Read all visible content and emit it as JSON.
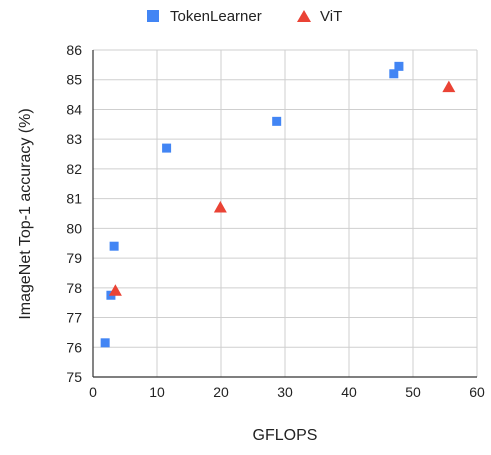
{
  "chart_data": {
    "type": "scatter",
    "title": "",
    "xlabel": "GFLOPS",
    "ylabel": "ImageNet Top-1 accuracy (%)",
    "xlim": [
      0,
      60
    ],
    "ylim": [
      75,
      86
    ],
    "x_ticks": [
      "0",
      "10",
      "20",
      "30",
      "40",
      "50",
      "60"
    ],
    "y_ticks": [
      "75",
      "76",
      "77",
      "78",
      "79",
      "80",
      "81",
      "82",
      "83",
      "84",
      "85",
      "86"
    ],
    "grid": true,
    "legend_position": "top",
    "series": [
      {
        "name": "TokenLearner",
        "marker": "square",
        "color": "#4285f4",
        "points": [
          {
            "x": 1.9,
            "y": 76.15
          },
          {
            "x": 2.8,
            "y": 77.75
          },
          {
            "x": 3.3,
            "y": 79.4
          },
          {
            "x": 11.5,
            "y": 82.7
          },
          {
            "x": 28.7,
            "y": 83.6
          },
          {
            "x": 47.0,
            "y": 85.2
          },
          {
            "x": 47.8,
            "y": 85.45
          }
        ]
      },
      {
        "name": "ViT",
        "marker": "triangle",
        "color": "#ea4335",
        "points": [
          {
            "x": 3.5,
            "y": 77.9
          },
          {
            "x": 19.9,
            "y": 80.7
          },
          {
            "x": 55.6,
            "y": 84.75
          }
        ]
      }
    ]
  }
}
